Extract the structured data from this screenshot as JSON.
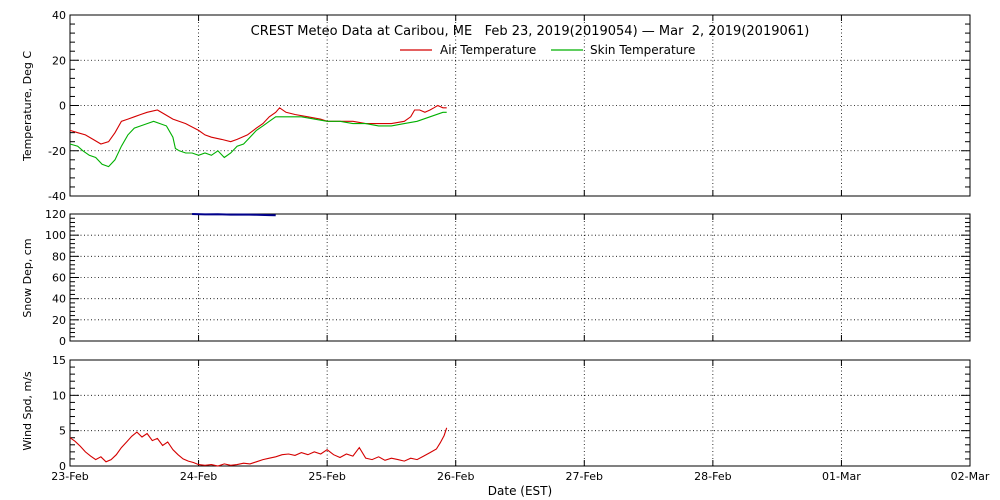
{
  "title": "CREST Meteo Data at Caribou, ME   Feb 23, 2019(2019054) — Mar  2, 2019(2019061)",
  "xlabel": "Date (EST)",
  "x_ticks": [
    "23-Feb",
    "24-Feb",
    "25-Feb",
    "26-Feb",
    "27-Feb",
    "28-Feb",
    "01-Mar",
    "02-Mar"
  ],
  "colors": {
    "air": "#d40000",
    "skin": "#00b000",
    "snow": "#00008b",
    "wind": "#d40000",
    "grid": "#000000"
  },
  "chart_data": [
    {
      "type": "line",
      "ylabel": "Temperature, Deg C",
      "xlim": [
        0,
        7
      ],
      "ylim": [
        -40,
        40
      ],
      "yticks": [
        -40,
        -20,
        0,
        20,
        40
      ],
      "grid": true,
      "legend": "top-center",
      "series": [
        {
          "name": "Air Temperature",
          "color": "#d40000",
          "points": [
            [
              0.0,
              -11
            ],
            [
              0.06,
              -12
            ],
            [
              0.12,
              -13
            ],
            [
              0.18,
              -15
            ],
            [
              0.24,
              -17
            ],
            [
              0.3,
              -16
            ],
            [
              0.35,
              -12
            ],
            [
              0.4,
              -7
            ],
            [
              0.45,
              -6
            ],
            [
              0.5,
              -5
            ],
            [
              0.55,
              -4
            ],
            [
              0.6,
              -3
            ],
            [
              0.68,
              -2
            ],
            [
              0.74,
              -4
            ],
            [
              0.8,
              -6
            ],
            [
              0.9,
              -8
            ],
            [
              1.0,
              -11
            ],
            [
              1.05,
              -13
            ],
            [
              1.1,
              -14
            ],
            [
              1.18,
              -15
            ],
            [
              1.25,
              -16
            ],
            [
              1.3,
              -15
            ],
            [
              1.38,
              -13
            ],
            [
              1.45,
              -10
            ],
            [
              1.5,
              -8
            ],
            [
              1.55,
              -5
            ],
            [
              1.6,
              -3
            ],
            [
              1.63,
              -1
            ],
            [
              1.68,
              -3
            ],
            [
              1.75,
              -4
            ],
            [
              1.85,
              -5
            ],
            [
              1.95,
              -6
            ],
            [
              2.0,
              -7
            ],
            [
              2.1,
              -7
            ],
            [
              2.2,
              -7
            ],
            [
              2.3,
              -8
            ],
            [
              2.4,
              -8
            ],
            [
              2.5,
              -8
            ],
            [
              2.6,
              -7
            ],
            [
              2.65,
              -5
            ],
            [
              2.68,
              -2
            ],
            [
              2.72,
              -2
            ],
            [
              2.76,
              -3
            ],
            [
              2.8,
              -2
            ],
            [
              2.83,
              -1
            ],
            [
              2.86,
              0
            ],
            [
              2.9,
              -1
            ],
            [
              2.93,
              -1
            ]
          ]
        },
        {
          "name": "Skin Temperature",
          "color": "#00b000",
          "points": [
            [
              0.0,
              -17
            ],
            [
              0.06,
              -18
            ],
            [
              0.1,
              -20
            ],
            [
              0.15,
              -22
            ],
            [
              0.2,
              -23
            ],
            [
              0.25,
              -26
            ],
            [
              0.3,
              -27
            ],
            [
              0.35,
              -24
            ],
            [
              0.4,
              -18
            ],
            [
              0.45,
              -13
            ],
            [
              0.5,
              -10
            ],
            [
              0.55,
              -9
            ],
            [
              0.6,
              -8
            ],
            [
              0.65,
              -7
            ],
            [
              0.7,
              -8
            ],
            [
              0.75,
              -9
            ],
            [
              0.8,
              -14
            ],
            [
              0.82,
              -19
            ],
            [
              0.85,
              -20
            ],
            [
              0.9,
              -21
            ],
            [
              0.95,
              -21
            ],
            [
              1.0,
              -22
            ],
            [
              1.05,
              -21
            ],
            [
              1.1,
              -22
            ],
            [
              1.15,
              -20
            ],
            [
              1.2,
              -23
            ],
            [
              1.25,
              -21
            ],
            [
              1.3,
              -18
            ],
            [
              1.35,
              -17
            ],
            [
              1.4,
              -14
            ],
            [
              1.45,
              -11
            ],
            [
              1.5,
              -9
            ],
            [
              1.55,
              -7
            ],
            [
              1.6,
              -5
            ],
            [
              1.7,
              -5
            ],
            [
              1.8,
              -5
            ],
            [
              1.9,
              -6
            ],
            [
              2.0,
              -7
            ],
            [
              2.1,
              -7
            ],
            [
              2.2,
              -8
            ],
            [
              2.3,
              -8
            ],
            [
              2.4,
              -9
            ],
            [
              2.5,
              -9
            ],
            [
              2.6,
              -8
            ],
            [
              2.7,
              -7
            ],
            [
              2.8,
              -5
            ],
            [
              2.9,
              -3
            ],
            [
              2.93,
              -3
            ]
          ]
        }
      ]
    },
    {
      "type": "line",
      "ylabel": "Snow Dep, cm",
      "xlim": [
        0,
        7
      ],
      "ylim": [
        0,
        120
      ],
      "yticks": [
        0,
        20,
        40,
        60,
        80,
        100,
        120
      ],
      "grid": true,
      "series": [
        {
          "name": "",
          "color": "#00008b",
          "points": [
            [
              0.95,
              120.0
            ],
            [
              1.05,
              119.6
            ],
            [
              1.15,
              119.8
            ],
            [
              1.25,
              119.4
            ],
            [
              1.35,
              119.5
            ],
            [
              1.45,
              119.2
            ],
            [
              1.55,
              119.0
            ],
            [
              1.6,
              118.8
            ]
          ]
        }
      ]
    },
    {
      "type": "line",
      "ylabel": "Wind Spd, m/s",
      "xlim": [
        0,
        7
      ],
      "ylim": [
        0,
        15
      ],
      "yticks": [
        0,
        5,
        10,
        15
      ],
      "grid": true,
      "series": [
        {
          "name": "",
          "color": "#d40000",
          "points": [
            [
              0.0,
              4.0
            ],
            [
              0.04,
              3.5
            ],
            [
              0.08,
              2.8
            ],
            [
              0.12,
              2.0
            ],
            [
              0.16,
              1.4
            ],
            [
              0.2,
              0.9
            ],
            [
              0.24,
              1.3
            ],
            [
              0.28,
              0.6
            ],
            [
              0.32,
              0.9
            ],
            [
              0.36,
              1.6
            ],
            [
              0.4,
              2.6
            ],
            [
              0.44,
              3.4
            ],
            [
              0.48,
              4.2
            ],
            [
              0.52,
              4.8
            ],
            [
              0.56,
              4.1
            ],
            [
              0.6,
              4.6
            ],
            [
              0.64,
              3.6
            ],
            [
              0.68,
              3.9
            ],
            [
              0.72,
              2.9
            ],
            [
              0.76,
              3.4
            ],
            [
              0.8,
              2.3
            ],
            [
              0.84,
              1.6
            ],
            [
              0.88,
              1.0
            ],
            [
              0.92,
              0.7
            ],
            [
              0.96,
              0.5
            ],
            [
              1.0,
              0.2
            ],
            [
              1.05,
              0.1
            ],
            [
              1.1,
              0.2
            ],
            [
              1.15,
              0.0
            ],
            [
              1.2,
              0.3
            ],
            [
              1.25,
              0.1
            ],
            [
              1.3,
              0.2
            ],
            [
              1.35,
              0.4
            ],
            [
              1.4,
              0.3
            ],
            [
              1.45,
              0.6
            ],
            [
              1.5,
              0.9
            ],
            [
              1.55,
              1.1
            ],
            [
              1.6,
              1.3
            ],
            [
              1.65,
              1.6
            ],
            [
              1.7,
              1.7
            ],
            [
              1.75,
              1.5
            ],
            [
              1.8,
              1.9
            ],
            [
              1.85,
              1.6
            ],
            [
              1.9,
              2.0
            ],
            [
              1.95,
              1.7
            ],
            [
              2.0,
              2.3
            ],
            [
              2.05,
              1.6
            ],
            [
              2.1,
              1.2
            ],
            [
              2.15,
              1.7
            ],
            [
              2.2,
              1.4
            ],
            [
              2.25,
              2.6
            ],
            [
              2.3,
              1.1
            ],
            [
              2.35,
              0.9
            ],
            [
              2.4,
              1.3
            ],
            [
              2.45,
              0.8
            ],
            [
              2.5,
              1.1
            ],
            [
              2.55,
              0.9
            ],
            [
              2.6,
              0.7
            ],
            [
              2.65,
              1.1
            ],
            [
              2.7,
              0.9
            ],
            [
              2.75,
              1.4
            ],
            [
              2.8,
              1.9
            ],
            [
              2.85,
              2.4
            ],
            [
              2.88,
              3.3
            ],
            [
              2.91,
              4.3
            ],
            [
              2.93,
              5.4
            ]
          ]
        }
      ]
    }
  ]
}
